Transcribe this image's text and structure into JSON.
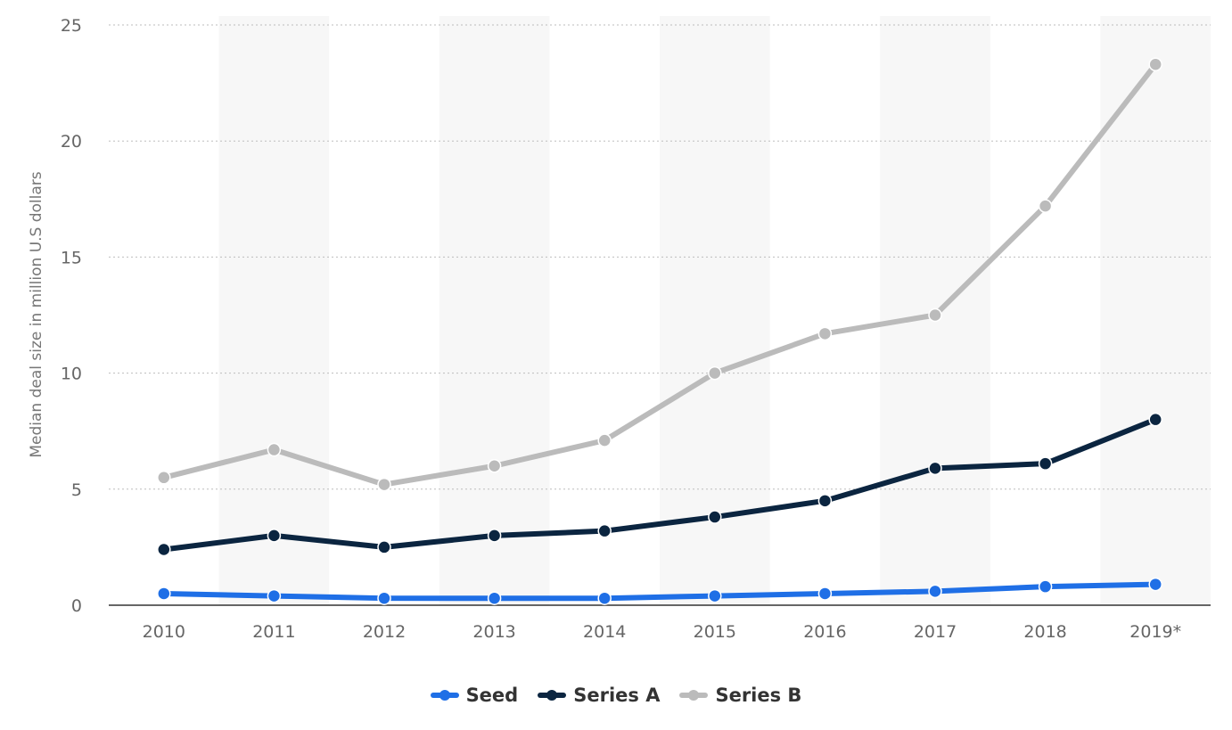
{
  "chart_data": {
    "type": "line",
    "title": "",
    "xlabel": "",
    "ylabel": "Median deal size in million U.S dollars",
    "categories": [
      "2010",
      "2011",
      "2012",
      "2013",
      "2014",
      "2015",
      "2016",
      "2017",
      "2018",
      "2019*"
    ],
    "ylim": [
      0,
      25
    ],
    "yticks": [
      "0",
      "5",
      "10",
      "15",
      "20",
      "25"
    ],
    "grid": true,
    "legend_position": "bottom-center",
    "series": [
      {
        "name": "Seed",
        "color": "#1f6fe6",
        "values": [
          0.5,
          0.4,
          0.3,
          0.3,
          0.3,
          0.4,
          0.5,
          0.6,
          0.8,
          0.9
        ]
      },
      {
        "name": "Series A",
        "color": "#0b2540",
        "values": [
          2.4,
          3.0,
          2.5,
          3.0,
          3.2,
          3.8,
          4.5,
          5.9,
          6.1,
          8.0
        ]
      },
      {
        "name": "Series B",
        "color": "#bbbbbb",
        "values": [
          5.5,
          6.7,
          5.2,
          6.0,
          7.1,
          10.0,
          11.7,
          12.5,
          17.2,
          23.3
        ]
      }
    ]
  }
}
